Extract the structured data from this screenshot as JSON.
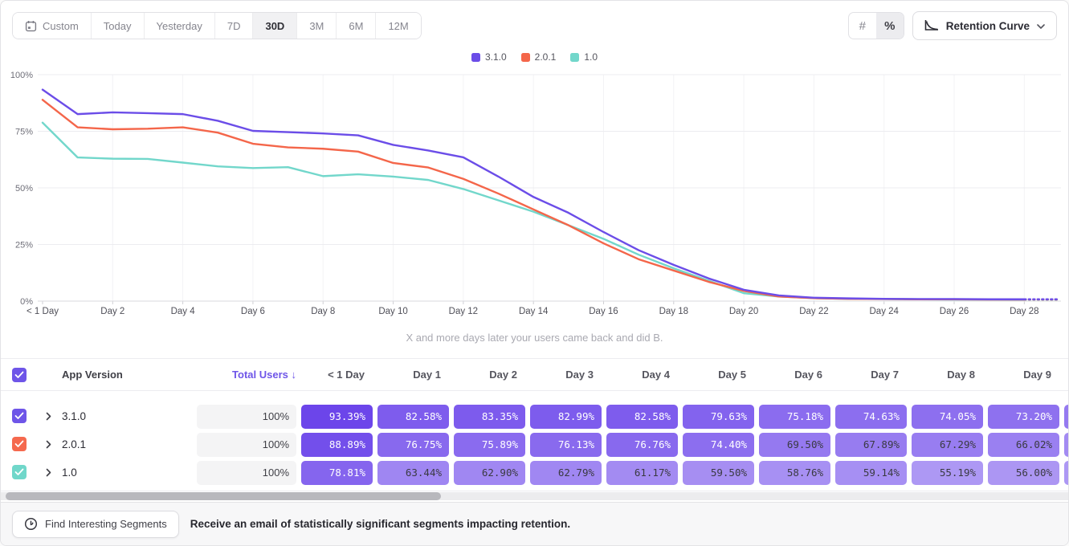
{
  "toolbar": {
    "date_ranges": [
      {
        "label": "Custom",
        "icon": "calendar-icon",
        "active": false
      },
      {
        "label": "Today",
        "active": false
      },
      {
        "label": "Yesterday",
        "active": false
      },
      {
        "label": "7D",
        "active": false
      },
      {
        "label": "30D",
        "active": true
      },
      {
        "label": "3M",
        "active": false
      },
      {
        "label": "6M",
        "active": false
      },
      {
        "label": "12M",
        "active": false
      }
    ],
    "value_format_toggle": {
      "options": [
        {
          "glyph": "#",
          "name": "absolute-numbers",
          "selected": false
        },
        {
          "glyph": "%",
          "name": "percentages",
          "selected": true
        }
      ]
    },
    "chart_type_dropdown": {
      "label": "Retention Curve"
    }
  },
  "chart": {
    "subtitle": "X and more days later your users came back and did B.",
    "y_tick_labels": [
      "100%",
      "75%",
      "50%",
      "25%",
      "0%"
    ],
    "x_tick_labels": [
      "< 1 Day",
      "Day 2",
      "Day 4",
      "Day 6",
      "Day 8",
      "Day 10",
      "Day 12",
      "Day 14",
      "Day 16",
      "Day 18",
      "Day 20",
      "Day 22",
      "Day 24",
      "Day 26",
      "Day 28"
    ]
  },
  "chart_data": {
    "type": "line",
    "title": "Retention Curve",
    "xlabel": "X and more days later your users came back and did B.",
    "ylabel": "",
    "ylim": [
      0,
      100
    ],
    "y_ticks_percent": [
      0,
      25,
      50,
      75,
      100
    ],
    "x_days": [
      0,
      1,
      2,
      3,
      4,
      5,
      6,
      7,
      8,
      9,
      10,
      11,
      12,
      13,
      14,
      15,
      16,
      17,
      18,
      19,
      20,
      21,
      22,
      23,
      24,
      25,
      26,
      27,
      28,
      29
    ],
    "dashed_tail_from_day": 28,
    "legend_position": "top-center",
    "series": [
      {
        "name": "3.1.0",
        "color": "#6b4de8",
        "values": [
          93.39,
          82.58,
          83.35,
          82.99,
          82.58,
          79.63,
          75.18,
          74.63,
          74.05,
          73.2,
          69.0,
          66.5,
          63.5,
          55.0,
          46.0,
          39.0,
          30.5,
          22.5,
          16.0,
          10.0,
          5.0,
          2.5,
          1.5,
          1.2,
          1.0,
          0.9,
          0.9,
          0.8,
          0.8,
          0.8
        ]
      },
      {
        "name": "2.0.1",
        "color": "#f4664a",
        "values": [
          88.89,
          76.75,
          75.89,
          76.13,
          76.76,
          74.4,
          69.5,
          67.89,
          67.29,
          66.02,
          61.0,
          59.0,
          54.0,
          47.5,
          40.5,
          33.5,
          25.5,
          18.5,
          13.5,
          8.5,
          4.5,
          2.0,
          1.3,
          1.0,
          0.9,
          0.8,
          0.8,
          0.7,
          0.7,
          0.7
        ]
      },
      {
        "name": "1.0",
        "color": "#72d7cb",
        "values": [
          78.81,
          63.44,
          62.9,
          62.79,
          61.17,
          59.5,
          58.76,
          59.14,
          55.19,
          56.0,
          55.0,
          53.5,
          49.5,
          44.5,
          39.5,
          33.5,
          27.5,
          20.5,
          14.5,
          9.0,
          3.5,
          2.0,
          1.3,
          1.0,
          0.9,
          0.8,
          0.7,
          0.7,
          0.6,
          0.6
        ]
      }
    ]
  },
  "table": {
    "header": {
      "select_all_checked": true,
      "checkbox_color": "#6e55e8",
      "app_version": "App Version",
      "total_users": "Total Users",
      "sort_arrow": "↓",
      "day_columns": [
        "< 1 Day",
        "Day 1",
        "Day 2",
        "Day 3",
        "Day 4",
        "Day 5",
        "Day 6",
        "Day 7",
        "Day 8",
        "Day 9"
      ]
    },
    "rows": [
      {
        "version": "3.1.0",
        "checked": true,
        "checkbox_color": "#6e55e8",
        "total_users": "100%",
        "values": [
          "93.39%",
          "82.58%",
          "83.35%",
          "82.99%",
          "82.58%",
          "79.63%",
          "75.18%",
          "74.63%",
          "74.05%",
          "73.20%"
        ]
      },
      {
        "version": "2.0.1",
        "checked": true,
        "checkbox_color": "#f5694e",
        "total_users": "100%",
        "values": [
          "88.89%",
          "76.75%",
          "75.89%",
          "76.13%",
          "76.76%",
          "74.40%",
          "69.50%",
          "67.89%",
          "67.29%",
          "66.02%"
        ]
      },
      {
        "version": "1.0",
        "checked": true,
        "checkbox_color": "#70d7ca",
        "total_users": "100%",
        "values": [
          "78.81%",
          "63.44%",
          "62.90%",
          "62.79%",
          "61.17%",
          "59.50%",
          "58.76%",
          "59.14%",
          "55.19%",
          "56.00%"
        ]
      }
    ]
  },
  "footer": {
    "button_label": "Find Interesting Segments",
    "message": "Receive an email of statistically significant segments impacting retention."
  }
}
